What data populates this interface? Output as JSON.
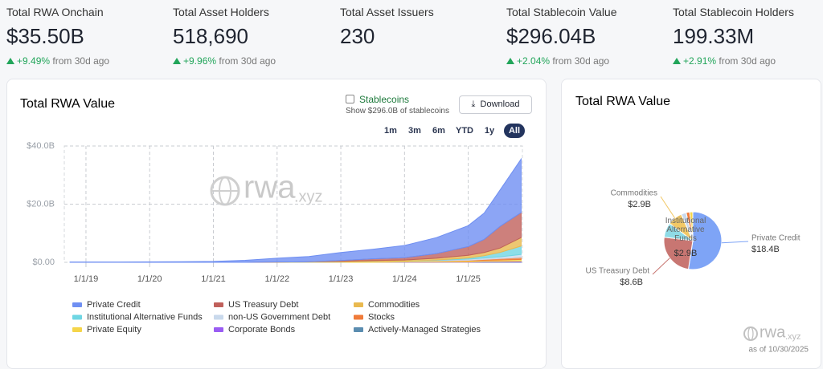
{
  "stats": [
    {
      "label": "Total RWA Onchain",
      "value": "$35.50B",
      "change": "+9.49%",
      "suffix": "from 30d ago"
    },
    {
      "label": "Total Asset Holders",
      "value": "518,690",
      "change": "+9.96%",
      "suffix": "from 30d ago"
    },
    {
      "label": "Total Asset Issuers",
      "value": "230"
    },
    {
      "label": "Total Stablecoin Value",
      "value": "$296.04B",
      "change": "+2.04%",
      "suffix": "from 30d ago"
    },
    {
      "label": "Total Stablecoin Holders",
      "value": "199.33M",
      "change": "+2.91%",
      "suffix": "from 30d ago"
    }
  ],
  "controls": {
    "stablecoins": "Stablecoins",
    "stablecoins_note": "Show $296.0B of stablecoins",
    "download": "Download",
    "ranges": [
      "1m",
      "3m",
      "6m",
      "YTD",
      "1y",
      "All"
    ]
  },
  "watermark": {
    "name": "rwa",
    "domain": ".xyz"
  },
  "as_of": "as of 10/30/2025",
  "chart_data": [
    {
      "type": "area",
      "title": "Total RWA Value",
      "stacked": true,
      "grid": true,
      "x": [
        2018.75,
        2019.5,
        2020.5,
        2021.0,
        2021.5,
        2022.0,
        2022.5,
        2023.0,
        2023.5,
        2024.0,
        2024.5,
        2025.0,
        2025.25,
        2025.5,
        2025.83
      ],
      "xlim": [
        2018.66,
        2025.85
      ],
      "xticks": [
        {
          "value": 2019,
          "label": "1/1/19"
        },
        {
          "value": 2020,
          "label": "1/1/20"
        },
        {
          "value": 2021,
          "label": "1/1/21"
        },
        {
          "value": 2022,
          "label": "1/1/22"
        },
        {
          "value": 2023,
          "label": "1/1/23"
        },
        {
          "value": 2024,
          "label": "1/1/24"
        },
        {
          "value": 2025,
          "label": "1/1/25"
        }
      ],
      "ylim": [
        0,
        40
      ],
      "yticks": [
        {
          "value": 0,
          "label": "$0.00"
        },
        {
          "value": 20,
          "label": "$20.0B"
        },
        {
          "value": 40,
          "label": "$40.0B"
        }
      ],
      "series": [
        {
          "name": "Private Credit",
          "color": "#6f8ff2",
          "values": [
            0.1,
            0.1,
            0.2,
            0.3,
            0.7,
            1.3,
            1.8,
            2.8,
            3.3,
            4.2,
            5.5,
            7.2,
            9.0,
            12.5,
            18.4
          ]
        },
        {
          "name": "US Treasury Debt",
          "color": "#c0605b",
          "values": [
            0,
            0,
            0,
            0,
            0,
            0,
            0,
            0.2,
            0.6,
            0.8,
            1.6,
            3.0,
            4.5,
            7.5,
            8.6
          ]
        },
        {
          "name": "Commodities",
          "color": "#e9b94f",
          "values": [
            0,
            0,
            0,
            0,
            0,
            0.1,
            0.1,
            0.3,
            0.4,
            0.4,
            0.6,
            0.9,
            1.1,
            1.5,
            2.9
          ]
        },
        {
          "name": "Institutional Alternative Funds",
          "color": "#6fd6e3",
          "values": [
            0,
            0,
            0,
            0,
            0,
            0,
            0,
            0,
            0,
            0,
            0.1,
            0.4,
            0.8,
            1.5,
            2.9
          ]
        },
        {
          "name": "non-US Government Debt",
          "color": "#c9d9ec",
          "values": [
            0,
            0,
            0,
            0,
            0,
            0,
            0,
            0,
            0,
            0.1,
            0.2,
            0.4,
            0.5,
            0.6,
            1.0
          ]
        },
        {
          "name": "Stocks",
          "color": "#f07b3a",
          "values": [
            0,
            0,
            0,
            0,
            0,
            0,
            0,
            0,
            0,
            0,
            0.1,
            0.2,
            0.3,
            0.5,
            0.7
          ]
        },
        {
          "name": "Private Equity",
          "color": "#f5d54a",
          "values": [
            0,
            0,
            0,
            0,
            0,
            0,
            0.1,
            0.1,
            0.2,
            0.2,
            0.3,
            0.4,
            0.4,
            0.5,
            0.6
          ]
        },
        {
          "name": "Corporate Bonds",
          "color": "#9a5cf3",
          "values": [
            0,
            0,
            0,
            0,
            0,
            0,
            0,
            0,
            0,
            0.1,
            0.1,
            0.1,
            0.2,
            0.2,
            0.3
          ]
        },
        {
          "name": "Actively-Managed Strategies",
          "color": "#5b8db0",
          "values": [
            0,
            0,
            0,
            0,
            0,
            0,
            0,
            0,
            0,
            0,
            0,
            0,
            0.1,
            0.1,
            0.1
          ]
        }
      ]
    },
    {
      "type": "pie",
      "title": "Total RWA Value",
      "categories": [
        "Private Credit",
        "US Treasury Debt",
        "Institutional Alternative Funds",
        "Commodities",
        null,
        null,
        null
      ],
      "values": [
        18.4,
        8.6,
        2.9,
        2.9,
        1.0,
        0.7,
        0.6
      ],
      "value_labels": [
        "$18.4B",
        "$8.6B",
        "$2.9B",
        "$2.9B",
        null,
        null,
        null
      ],
      "colors": [
        "#7ea4f6",
        "#c87672",
        "#8fdbe6",
        "#f2c866",
        "#c9d9ec",
        "#f07b3a",
        "#f5d54a"
      ]
    }
  ]
}
